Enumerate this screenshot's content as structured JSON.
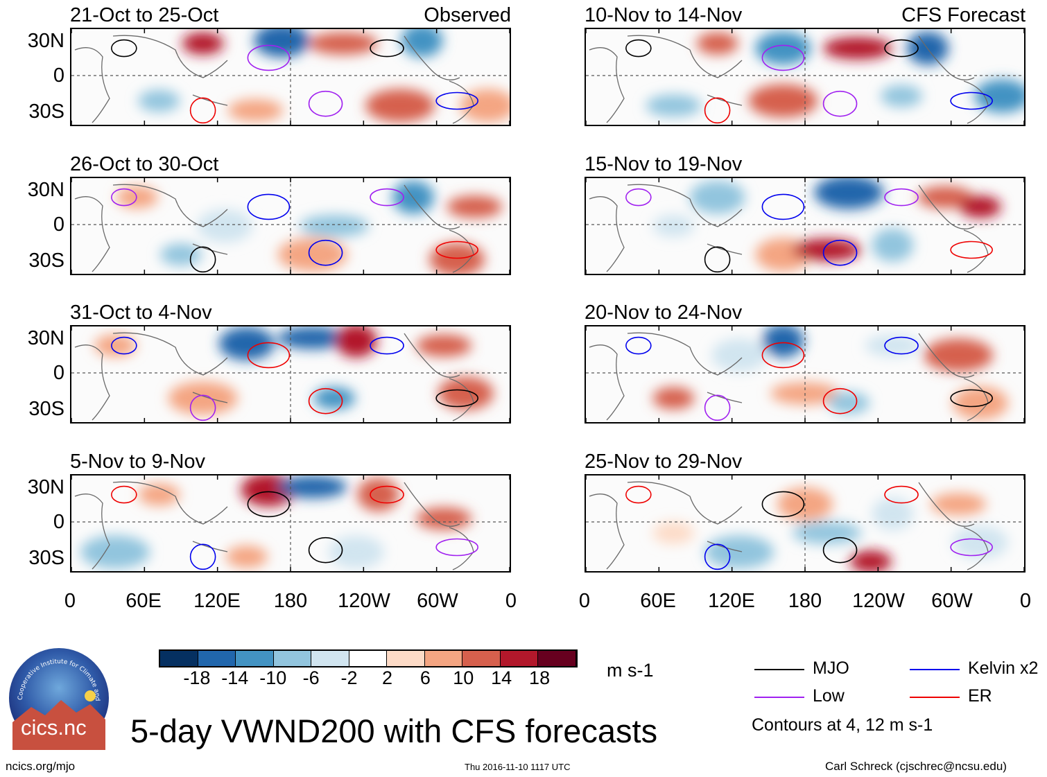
{
  "title": "5-day VWND200 with CFS forecasts",
  "logo": {
    "text": "cics.nc",
    "ring_text": "Cooperative Institute for Climate and Satellites"
  },
  "columns": [
    {
      "label": "Observed",
      "panels": [
        "21-Oct to 25-Oct",
        "26-Oct to 30-Oct",
        "31-Oct to 4-Nov",
        "5-Nov to 9-Nov"
      ]
    },
    {
      "label": "CFS Forecast",
      "panels": [
        "10-Nov to 14-Nov",
        "15-Nov to 19-Nov",
        "20-Nov to 24-Nov",
        "25-Nov to 29-Nov"
      ]
    }
  ],
  "lat_labels": [
    "30N",
    "0",
    "30S"
  ],
  "lon_labels": [
    "0",
    "60E",
    "120E",
    "180",
    "120W",
    "60W",
    "0"
  ],
  "colorbar": {
    "unit": "m s-1",
    "ticks": [
      "-18",
      "-14",
      "-10",
      "-6",
      "-2",
      "2",
      "6",
      "10",
      "14",
      "18"
    ],
    "colors": [
      "#053061",
      "#2166ac",
      "#4393c3",
      "#92c5de",
      "#d1e5f0",
      "#ffffff",
      "#fddbc7",
      "#f4a582",
      "#d6604d",
      "#b2182b",
      "#67001f"
    ]
  },
  "legend": {
    "items": [
      {
        "label": "MJO",
        "color": "#000000"
      },
      {
        "label": "Kelvin x2",
        "color": "#0000ee"
      },
      {
        "label": "Low",
        "color": "#a020f0"
      },
      {
        "label": "ER",
        "color": "#ee0000"
      }
    ],
    "note": "Contours at 4, 12 m s-1"
  },
  "footer": {
    "left": "ncics.org/mjo",
    "center": "Thu 2016-11-10 1117 UTC",
    "right": "Carl Schreck (cjschrec@ncsu.edu)"
  }
}
